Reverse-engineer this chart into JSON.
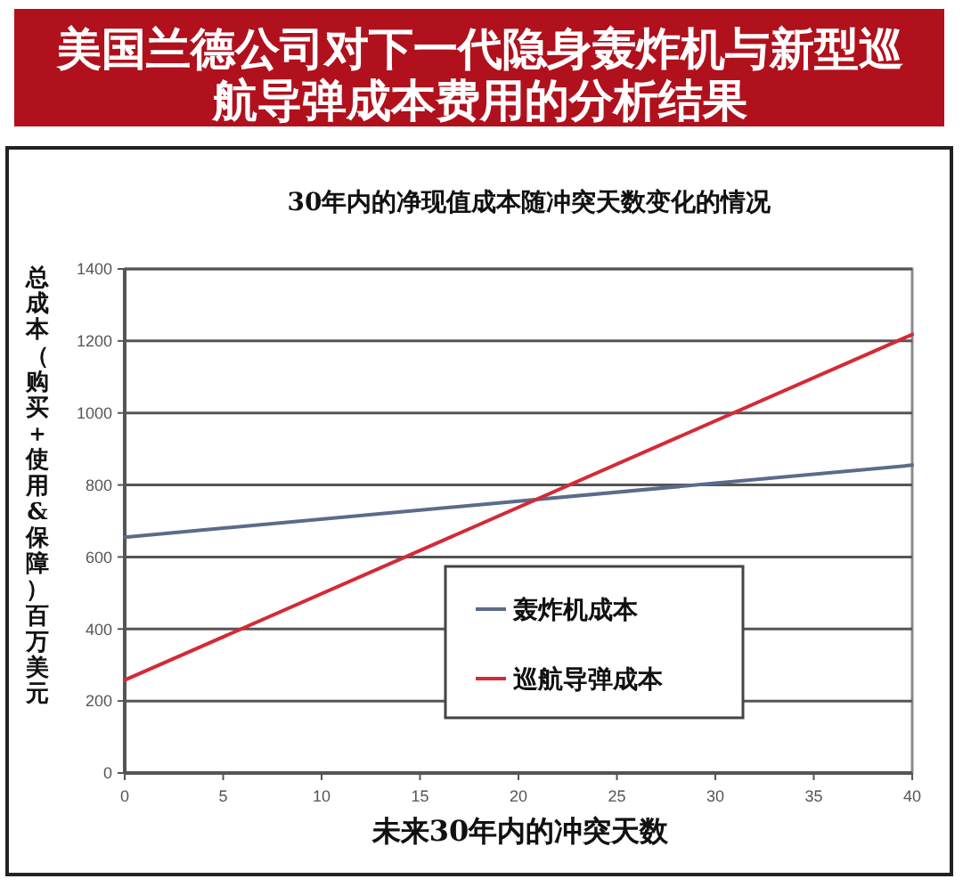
{
  "chart_data": {
    "type": "line",
    "title": "美国兰德公司对下一代隐身轰炸机与新型巡航导弹成本费用的分析结果",
    "subtitle": "30年内的净现值成本随冲突天数变化的情况",
    "xlabel": "未来30年内的冲突天数",
    "ylabel": "总成本（购买＋使用&保障）百万美元",
    "x": [
      0,
      40
    ],
    "series": [
      {
        "name": "轰炸机成本",
        "color": "#5b6b8a",
        "values": [
          655,
          855
        ]
      },
      {
        "name": "巡航导弹成本",
        "color": "#d42a35",
        "values": [
          258,
          1218
        ]
      }
    ],
    "xlim": [
      0,
      40
    ],
    "xticks": [
      0,
      5,
      10,
      15,
      20,
      25,
      30,
      35,
      40
    ],
    "ylim": [
      0,
      1400
    ],
    "yticks": [
      0,
      200,
      400,
      600,
      800,
      1000,
      1200,
      1400
    ],
    "grid": "y",
    "legend": "bottom right",
    "line_style": "solid"
  }
}
